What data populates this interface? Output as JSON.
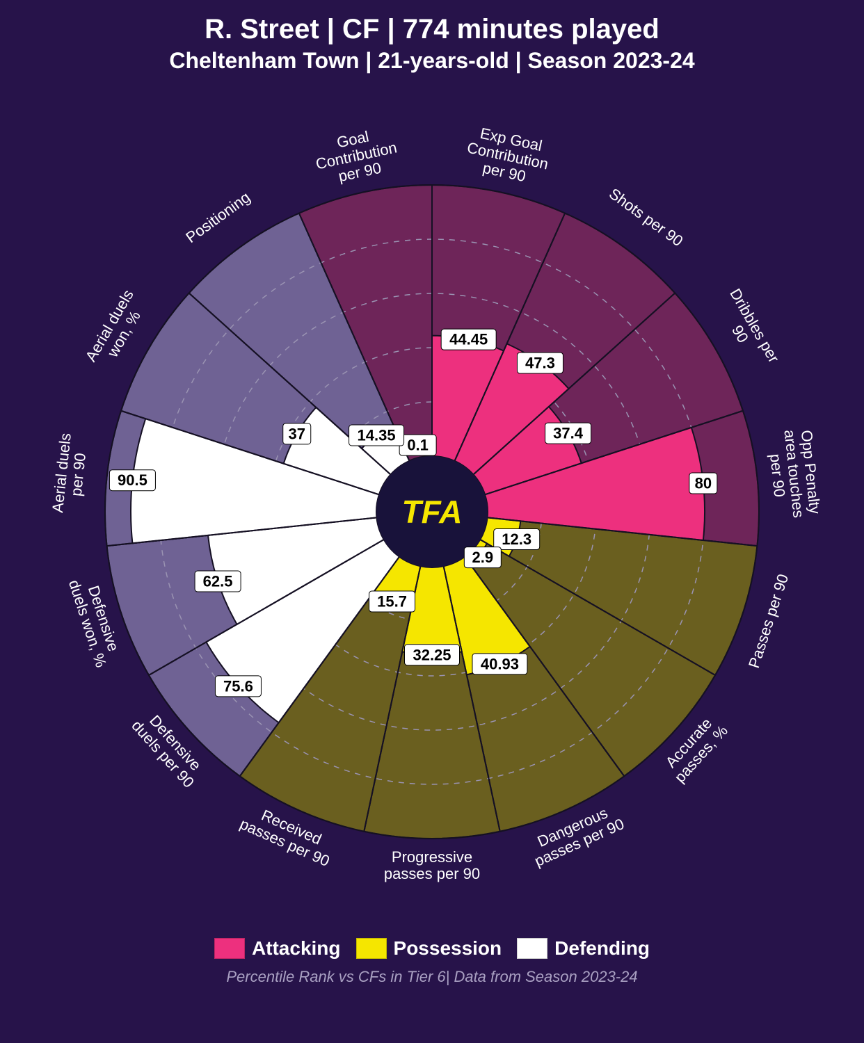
{
  "title": {
    "main": "R. Street | CF | 774 minutes played",
    "sub": "Cheltenham Town | 21-years-old | Season 2023-24",
    "font_color": "#ffffff",
    "main_fontsize": 40,
    "sub_fontsize": 32
  },
  "caption": "Percentile Rank vs CFs in Tier 6| Data from Season 2023-24",
  "background_color": "#27134a",
  "chart": {
    "type": "polar-bar",
    "radius_outer": 470,
    "radius_inner": 80,
    "grid_rings": [
      20,
      40,
      60,
      80
    ],
    "grid_color": "#9a93b2",
    "sector_divider_color": "#151023",
    "value_max": 100,
    "center_label": "TFA",
    "center_fill": "#18123a",
    "center_text_color": "#f5e600",
    "categories": {
      "Attacking": {
        "fill": "#ed307e",
        "bg": "#6e2559"
      },
      "Possession": {
        "fill": "#f5e600",
        "bg": "#6a5f1f"
      },
      "Defending": {
        "fill": "#ffffff",
        "bg": "#6f6294"
      }
    },
    "legend": [
      {
        "label": "Attacking",
        "color": "#ed307e"
      },
      {
        "label": "Possession",
        "color": "#f5e600"
      },
      {
        "label": "Defending",
        "color": "#ffffff"
      }
    ],
    "metrics": [
      {
        "label": "Goal Contribution per 90",
        "value": 0.1,
        "category": "Attacking"
      },
      {
        "label": "Exp Goal Contribution per 90",
        "value": 44.45,
        "category": "Attacking"
      },
      {
        "label": "Shots per 90",
        "value": 47.3,
        "category": "Attacking"
      },
      {
        "label": "Dribbles per 90",
        "value": 37.4,
        "category": "Attacking"
      },
      {
        "label": "Opp Penalty area touches per 90",
        "value": 80.0,
        "category": "Attacking"
      },
      {
        "label": "Passes per 90",
        "value": 12.3,
        "category": "Possession"
      },
      {
        "label": "Accurate passes, %",
        "value": 2.9,
        "category": "Possession"
      },
      {
        "label": "Dangerous passes per 90",
        "value": 40.93,
        "category": "Possession"
      },
      {
        "label": "Progressive passes per 90",
        "value": 32.25,
        "category": "Possession"
      },
      {
        "label": "Received passes per 90",
        "value": 15.7,
        "category": "Possession"
      },
      {
        "label": "Defensive duels per 90",
        "value": 75.6,
        "category": "Defending"
      },
      {
        "label": "Defensive duels won, %",
        "value": 62.5,
        "category": "Defending"
      },
      {
        "label": "Aerial duels per 90",
        "value": 90.5,
        "category": "Defending"
      },
      {
        "label": "Aerial duels won, %",
        "value": 37.0,
        "category": "Defending"
      },
      {
        "label": "Positioning",
        "value": 14.35,
        "category": "Defending"
      }
    ]
  }
}
